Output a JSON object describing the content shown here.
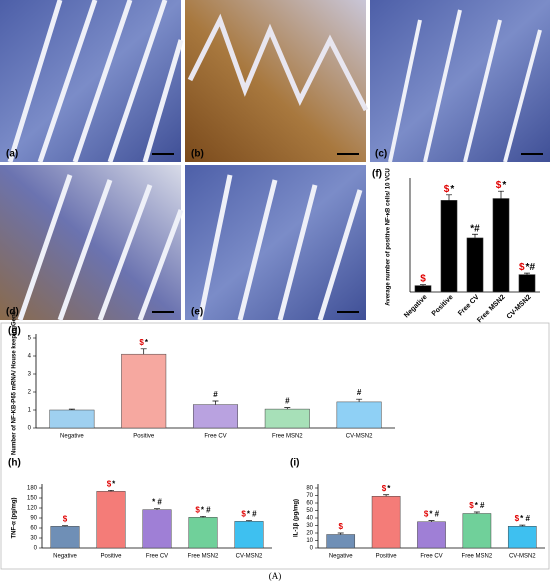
{
  "panels": [
    {
      "label": "(a)"
    },
    {
      "label": "(b)"
    },
    {
      "label": "(c)"
    },
    {
      "label": "(d)"
    },
    {
      "label": "(e)"
    }
  ],
  "caption": "(A)",
  "chart_data": [
    {
      "type": "bar",
      "label": "(f)",
      "ylabel": "Average number of positive NF-κB cells/ 10 VCU",
      "categories": [
        "Negative",
        "Positive",
        "Free CV",
        "Free MSN2",
        "CV-MSN2"
      ],
      "values": [
        35,
        500,
        295,
        510,
        95
      ],
      "errors": [
        5,
        30,
        20,
        40,
        8
      ],
      "colors": [
        "#000000",
        "#000000",
        "#000000",
        "#000000",
        "#000000"
      ],
      "annotations": [
        [
          {
            "text": "$",
            "color": "#e00000"
          }
        ],
        [
          {
            "text": "$",
            "color": "#e00000"
          },
          {
            "text": "*",
            "color": "#000000"
          }
        ],
        [
          {
            "text": "*#",
            "color": "#000000"
          }
        ],
        [
          {
            "text": "$",
            "color": "#e00000"
          },
          {
            "text": "*",
            "color": "#000000"
          }
        ],
        [
          {
            "text": "$",
            "color": "#e00000"
          },
          {
            "text": "*#",
            "color": "#000000"
          }
        ]
      ],
      "ylim": [
        0,
        600
      ],
      "yticks": []
    },
    {
      "type": "bar",
      "label": "(g)",
      "ylabel": "Number of NF-KB-P65 mRNA/ House keepingGene",
      "categories": [
        "Negative",
        "Positive",
        "Free CV",
        "Free MSN2",
        "CV-MSN2"
      ],
      "values": [
        1.0,
        4.1,
        1.3,
        1.05,
        1.45
      ],
      "errors": [
        0.05,
        0.3,
        0.2,
        0.08,
        0.15
      ],
      "colors": [
        "#9fd0f0",
        "#f6a8a0",
        "#b9a2e0",
        "#a7e0b8",
        "#8fd0f5"
      ],
      "annotations": [
        [],
        [
          {
            "text": "$",
            "color": "#e00000"
          },
          {
            "text": "*",
            "color": "#000000"
          }
        ],
        [
          {
            "text": "#",
            "color": "#000000"
          }
        ],
        [
          {
            "text": "#",
            "color": "#000000"
          }
        ],
        [
          {
            "text": "#",
            "color": "#000000"
          }
        ]
      ],
      "ylim": [
        0,
        5
      ],
      "yticks": [
        0,
        1,
        2,
        3,
        4,
        5
      ]
    },
    {
      "type": "bar",
      "label": "(h)",
      "ylabel": "TNF-α (pg/mg)",
      "categories": [
        "Negative",
        "Positive",
        "Free CV",
        "Free MSN2",
        "CV-MSN2"
      ],
      "values": [
        65,
        170,
        115,
        92,
        80
      ],
      "errors": [
        2,
        3,
        3,
        3,
        2
      ],
      "colors": [
        "#6f8fb6",
        "#f47c78",
        "#9f7fd6",
        "#70d09a",
        "#3ec0f0"
      ],
      "annotations": [
        [
          {
            "text": "$",
            "color": "#e00000"
          }
        ],
        [
          {
            "text": "$",
            "color": "#e00000"
          },
          {
            "text": "*",
            "color": "#000000"
          }
        ],
        [
          {
            "text": "* #",
            "color": "#000000"
          }
        ],
        [
          {
            "text": "$",
            "color": "#e00000"
          },
          {
            "text": "* #",
            "color": "#000000"
          }
        ],
        [
          {
            "text": "$",
            "color": "#e00000"
          },
          {
            "text": "* #",
            "color": "#000000"
          }
        ]
      ],
      "ylim": [
        0,
        180
      ],
      "yticks": [
        0,
        30,
        60,
        90,
        120,
        150,
        180
      ]
    },
    {
      "type": "bar",
      "label": "(i)",
      "ylabel": "IL-1β (pg/mg)",
      "categories": [
        "Negative",
        "Positive",
        "Free CV",
        "Free MSN2",
        "CV-MSN2"
      ],
      "values": [
        18,
        69,
        35,
        46,
        29
      ],
      "errors": [
        2,
        2,
        1.5,
        2,
        1.5
      ],
      "colors": [
        "#6f8fb6",
        "#f47c78",
        "#9f7fd6",
        "#70d09a",
        "#3ec0f0"
      ],
      "annotations": [
        [
          {
            "text": "$",
            "color": "#e00000"
          }
        ],
        [
          {
            "text": "$",
            "color": "#e00000"
          },
          {
            "text": "*",
            "color": "#000000"
          }
        ],
        [
          {
            "text": "$",
            "color": "#e00000"
          },
          {
            "text": "* #",
            "color": "#000000"
          }
        ],
        [
          {
            "text": "$",
            "color": "#e00000"
          },
          {
            "text": "* #",
            "color": "#000000"
          }
        ],
        [
          {
            "text": "$",
            "color": "#e00000"
          },
          {
            "text": "* #",
            "color": "#000000"
          }
        ]
      ],
      "ylim": [
        0,
        80
      ],
      "yticks": [
        0,
        10,
        20,
        30,
        40,
        50,
        60,
        70,
        80
      ]
    }
  ]
}
